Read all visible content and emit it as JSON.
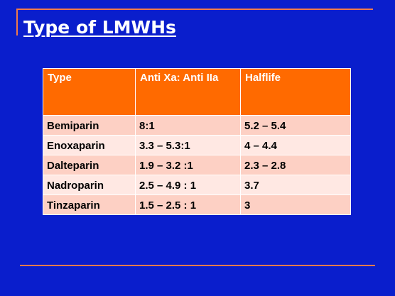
{
  "slide": {
    "title": "Type of LMWHs"
  },
  "colors": {
    "background": "#0a1ecc",
    "accent_line": "#f07a4a",
    "header_fill": "#ff6a00",
    "row_fill_odd": "#fdd0c4",
    "row_fill_even": "#ffe8e3",
    "title_text": "#ffffff"
  },
  "table": {
    "headers": [
      "Type",
      "Anti Xa: Anti IIa",
      "Halflife"
    ],
    "rows": [
      [
        "Bemiparin",
        "8:1",
        "5.2 – 5.4"
      ],
      [
        "Enoxaparin",
        "3.3 – 5.3:1",
        "4 – 4.4"
      ],
      [
        "Dalteparin",
        "1.9 – 3.2 :1",
        "2.3 – 2.8"
      ],
      [
        "Nadroparin",
        "2.5 – 4.9 : 1",
        "3.7"
      ],
      [
        "Tinzaparin",
        "1.5 – 2.5 : 1",
        "3"
      ]
    ]
  }
}
